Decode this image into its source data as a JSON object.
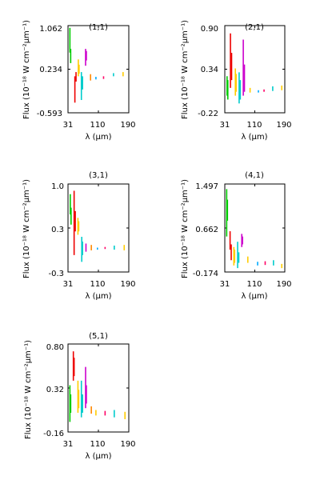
{
  "chart_data": [
    {
      "type": "line",
      "title": "(1,1)",
      "xlabel": "λ (μm)",
      "ylabel": "Flux (10⁻¹⁸ W cm⁻²μm⁻¹)",
      "xlim": [
        31,
        190
      ],
      "ylim": [
        -0.593,
        1.062
      ],
      "xticks": [
        "31",
        "110",
        "190"
      ],
      "yticks": [
        "-0.593",
        "0.234",
        "1.062"
      ],
      "segments": [
        {
          "color": "#00cc00",
          "x": [
            36,
            36
          ],
          "y": [
            0.55,
            1.02
          ]
        },
        {
          "color": "#00cc00",
          "x": [
            38,
            38
          ],
          "y": [
            0.35,
            0.62
          ]
        },
        {
          "color": "#ee0000",
          "x": [
            49,
            49
          ],
          "y": [
            -0.4,
            0.1
          ]
        },
        {
          "color": "#ee0000",
          "x": [
            52,
            52
          ],
          "y": [
            0.0,
            0.18
          ]
        },
        {
          "color": "#ffcc00",
          "x": [
            58,
            58
          ],
          "y": [
            0.1,
            0.42
          ]
        },
        {
          "color": "#ffcc00",
          "x": [
            60,
            60
          ],
          "y": [
            0.15,
            0.32
          ]
        },
        {
          "color": "#00cccc",
          "x": [
            66,
            66
          ],
          "y": [
            -0.35,
            0.18
          ]
        },
        {
          "color": "#00cccc",
          "x": [
            69,
            69
          ],
          "y": [
            -0.15,
            0.1
          ]
        },
        {
          "color": "#cc00cc",
          "x": [
            77,
            77
          ],
          "y": [
            0.3,
            0.62
          ]
        },
        {
          "color": "#cc00cc",
          "x": [
            79,
            79
          ],
          "y": [
            0.4,
            0.58
          ]
        },
        {
          "color": "#ff8800",
          "x": [
            90,
            90
          ],
          "y": [
            0.02,
            0.14
          ]
        },
        {
          "color": "#00aaff",
          "x": [
            104,
            104
          ],
          "y": [
            0.04,
            0.09
          ]
        },
        {
          "color": "#ff0066",
          "x": [
            124,
            124
          ],
          "y": [
            0.05,
            0.1
          ]
        },
        {
          "color": "#00cccc",
          "x": [
            150,
            150
          ],
          "y": [
            0.1,
            0.16
          ]
        },
        {
          "color": "#ffcc00",
          "x": [
            175,
            175
          ],
          "y": [
            0.1,
            0.18
          ]
        }
      ]
    },
    {
      "type": "line",
      "title": "(2,1)",
      "xlabel": "λ (μm)",
      "ylabel": "Flux (10⁻¹⁸ W cm⁻²μm⁻¹)",
      "xlim": [
        31,
        190
      ],
      "ylim": [
        -0.22,
        0.9
      ],
      "xticks": [
        "31",
        "110",
        "190"
      ],
      "yticks": [
        "-0.22",
        "0.34",
        "0.90"
      ],
      "segments": [
        {
          "color": "#00cc00",
          "x": [
            37,
            37
          ],
          "y": [
            0.0,
            0.25
          ]
        },
        {
          "color": "#00cc00",
          "x": [
            39,
            39
          ],
          "y": [
            -0.05,
            0.2
          ]
        },
        {
          "color": "#ee0000",
          "x": [
            46,
            46
          ],
          "y": [
            0.1,
            0.8
          ]
        },
        {
          "color": "#ee0000",
          "x": [
            49,
            49
          ],
          "y": [
            0.2,
            0.55
          ]
        },
        {
          "color": "#ffcc00",
          "x": [
            59,
            59
          ],
          "y": [
            0.0,
            0.35
          ]
        },
        {
          "color": "#ffcc00",
          "x": [
            61,
            61
          ],
          "y": [
            0.05,
            0.28
          ]
        },
        {
          "color": "#00cccc",
          "x": [
            69,
            69
          ],
          "y": [
            -0.1,
            0.3
          ]
        },
        {
          "color": "#00cccc",
          "x": [
            72,
            72
          ],
          "y": [
            -0.05,
            0.2
          ]
        },
        {
          "color": "#cc00cc",
          "x": [
            80,
            80
          ],
          "y": [
            0.0,
            0.72
          ]
        },
        {
          "color": "#cc00cc",
          "x": [
            83,
            83
          ],
          "y": [
            0.05,
            0.4
          ]
        },
        {
          "color": "#ffcc00",
          "x": [
            98,
            98
          ],
          "y": [
            0.04,
            0.1
          ]
        },
        {
          "color": "#00aaff",
          "x": [
            120,
            120
          ],
          "y": [
            0.04,
            0.07
          ]
        },
        {
          "color": "#ff0066",
          "x": [
            135,
            135
          ],
          "y": [
            0.05,
            0.08
          ]
        },
        {
          "color": "#00cccc",
          "x": [
            158,
            158
          ],
          "y": [
            0.06,
            0.12
          ]
        },
        {
          "color": "#ffcc00",
          "x": [
            182,
            182
          ],
          "y": [
            0.07,
            0.13
          ]
        }
      ]
    },
    {
      "type": "line",
      "title": "(3,1)",
      "xlabel": "λ (μm)",
      "ylabel": "Flux (10⁻¹⁸ W cm⁻²μm⁻¹)",
      "xlim": [
        31,
        190
      ],
      "ylim": [
        -0.3,
        1.0
      ],
      "xticks": [
        "31",
        "110",
        "190"
      ],
      "yticks": [
        "-0.3",
        "0.3",
        "1.0"
      ],
      "segments": [
        {
          "color": "#00cc00",
          "x": [
            37,
            37
          ],
          "y": [
            0.55,
            0.85
          ]
        },
        {
          "color": "#00cc00",
          "x": [
            39,
            39
          ],
          "y": [
            0.4,
            0.65
          ]
        },
        {
          "color": "#ee0000",
          "x": [
            47,
            47
          ],
          "y": [
            -0.05,
            0.9
          ]
        },
        {
          "color": "#ee0000",
          "x": [
            50,
            50
          ],
          "y": [
            0.3,
            0.6
          ]
        },
        {
          "color": "#ffcc00",
          "x": [
            57,
            57
          ],
          "y": [
            0.25,
            0.5
          ]
        },
        {
          "color": "#ffcc00",
          "x": [
            59,
            59
          ],
          "y": [
            0.3,
            0.45
          ]
        },
        {
          "color": "#00cccc",
          "x": [
            67,
            67
          ],
          "y": [
            -0.15,
            0.22
          ]
        },
        {
          "color": "#00cccc",
          "x": [
            69,
            69
          ],
          "y": [
            -0.05,
            0.15
          ]
        },
        {
          "color": "#cc00cc",
          "x": [
            78,
            78
          ],
          "y": [
            0.0,
            0.12
          ]
        },
        {
          "color": "#ff8800",
          "x": [
            92,
            92
          ],
          "y": [
            0.02,
            0.1
          ]
        },
        {
          "color": "#00aaff",
          "x": [
            108,
            108
          ],
          "y": [
            0.03,
            0.06
          ]
        },
        {
          "color": "#ff0066",
          "x": [
            128,
            128
          ],
          "y": [
            0.04,
            0.07
          ]
        },
        {
          "color": "#00cccc",
          "x": [
            152,
            152
          ],
          "y": [
            0.03,
            0.09
          ]
        },
        {
          "color": "#ffcc00",
          "x": [
            178,
            178
          ],
          "y": [
            0.02,
            0.1
          ]
        }
      ]
    },
    {
      "type": "line",
      "title": "(4,1)",
      "xlabel": "λ (μm)",
      "ylabel": "Flux (10⁻¹⁸ W cm⁻²μm⁻¹)",
      "xlim": [
        31,
        190
      ],
      "ylim": [
        -0.174,
        1.497
      ],
      "xticks": [
        "31",
        "110",
        "190"
      ],
      "yticks": [
        "-0.174",
        "0.662",
        "1.497"
      ],
      "segments": [
        {
          "color": "#00cc00",
          "x": [
            36,
            36
          ],
          "y": [
            0.5,
            1.4
          ]
        },
        {
          "color": "#00cc00",
          "x": [
            38,
            38
          ],
          "y": [
            0.8,
            1.2
          ]
        },
        {
          "color": "#ee0000",
          "x": [
            45,
            45
          ],
          "y": [
            0.25,
            0.6
          ]
        },
        {
          "color": "#ee0000",
          "x": [
            48,
            48
          ],
          "y": [
            0.05,
            0.35
          ]
        },
        {
          "color": "#ffcc00",
          "x": [
            55,
            55
          ],
          "y": [
            -0.05,
            0.3
          ]
        },
        {
          "color": "#ffcc00",
          "x": [
            57,
            57
          ],
          "y": [
            0.0,
            0.25
          ]
        },
        {
          "color": "#00cccc",
          "x": [
            65,
            65
          ],
          "y": [
            -0.1,
            0.4
          ]
        },
        {
          "color": "#00cccc",
          "x": [
            68,
            68
          ],
          "y": [
            0.0,
            0.2
          ]
        },
        {
          "color": "#cc00cc",
          "x": [
            76,
            76
          ],
          "y": [
            0.3,
            0.55
          ]
        },
        {
          "color": "#cc00cc",
          "x": [
            78,
            78
          ],
          "y": [
            0.35,
            0.5
          ]
        },
        {
          "color": "#ffcc00",
          "x": [
            92,
            92
          ],
          "y": [
            0.0,
            0.12
          ]
        },
        {
          "color": "#00aaff",
          "x": [
            118,
            118
          ],
          "y": [
            -0.05,
            0.02
          ]
        },
        {
          "color": "#ff0066",
          "x": [
            138,
            138
          ],
          "y": [
            -0.04,
            0.03
          ]
        },
        {
          "color": "#00cccc",
          "x": [
            160,
            160
          ],
          "y": [
            -0.05,
            0.05
          ]
        },
        {
          "color": "#ffcc00",
          "x": [
            182,
            182
          ],
          "y": [
            -0.1,
            -0.02
          ]
        }
      ]
    },
    {
      "type": "line",
      "title": "(5,1)",
      "xlabel": "λ (μm)",
      "ylabel": "Flux (10⁻¹⁸ W cm⁻²μm⁻¹)",
      "xlim": [
        31,
        190
      ],
      "ylim": [
        -0.16,
        0.8
      ],
      "xticks": [
        "31",
        "110",
        "190"
      ],
      "yticks": [
        "-0.16",
        "0.32",
        "0.80"
      ],
      "segments": [
        {
          "color": "#00cc00",
          "x": [
            36,
            36
          ],
          "y": [
            -0.05,
            0.35
          ]
        },
        {
          "color": "#00cc00",
          "x": [
            38,
            38
          ],
          "y": [
            0.05,
            0.25
          ]
        },
        {
          "color": "#ee0000",
          "x": [
            45,
            45
          ],
          "y": [
            0.4,
            0.72
          ]
        },
        {
          "color": "#ee0000",
          "x": [
            47,
            47
          ],
          "y": [
            0.45,
            0.65
          ]
        },
        {
          "color": "#ffcc00",
          "x": [
            57,
            57
          ],
          "y": [
            0.05,
            0.4
          ]
        },
        {
          "color": "#ffcc00",
          "x": [
            59,
            59
          ],
          "y": [
            0.1,
            0.3
          ]
        },
        {
          "color": "#00cccc",
          "x": [
            66,
            66
          ],
          "y": [
            0.0,
            0.4
          ]
        },
        {
          "color": "#00cccc",
          "x": [
            69,
            69
          ],
          "y": [
            0.05,
            0.25
          ]
        },
        {
          "color": "#cc00cc",
          "x": [
            77,
            77
          ],
          "y": [
            0.1,
            0.55
          ]
        },
        {
          "color": "#cc00cc",
          "x": [
            79,
            79
          ],
          "y": [
            0.15,
            0.35
          ]
        },
        {
          "color": "#ff8800",
          "x": [
            92,
            92
          ],
          "y": [
            0.04,
            0.12
          ]
        },
        {
          "color": "#ffcc00",
          "x": [
            104,
            104
          ],
          "y": [
            0.02,
            0.08
          ]
        },
        {
          "color": "#ff0066",
          "x": [
            128,
            128
          ],
          "y": [
            0.02,
            0.07
          ]
        },
        {
          "color": "#00cccc",
          "x": [
            152,
            152
          ],
          "y": [
            0.0,
            0.08
          ]
        },
        {
          "color": "#ffcc00",
          "x": [
            180,
            180
          ],
          "y": [
            -0.02,
            0.06
          ]
        }
      ]
    }
  ]
}
